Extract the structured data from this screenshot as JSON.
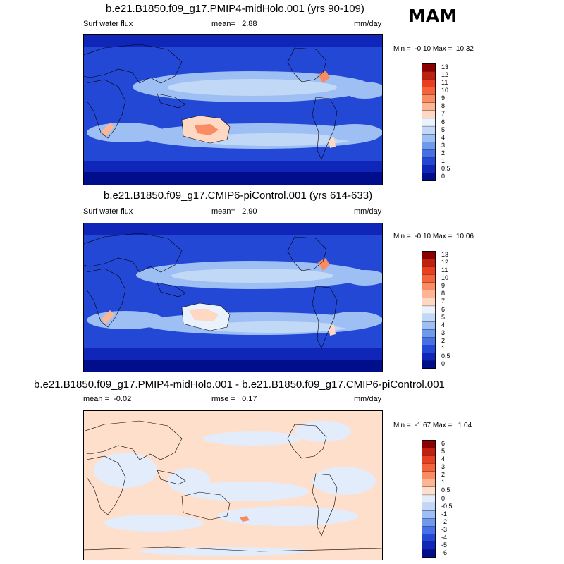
{
  "season": "MAM",
  "units": "mm/day",
  "panels": [
    {
      "title": "b.e21.B1850.f09_g17.PMIP4-midHolo.001 (yrs 90-109)",
      "left_label": "Surf water flux",
      "stat_text": "mean=   2.88",
      "units": "mm/day",
      "minmax": "Min =  -0.10 Max =  10.32"
    },
    {
      "title": "b.e21.B1850.f09_g17.CMIP6-piControl.001 (yrs 614-633)",
      "left_label": "Surf water flux",
      "stat_text": "mean=   2.90",
      "units": "mm/day",
      "minmax": "Min =  -0.10 Max =  10.06"
    },
    {
      "title": "b.e21.B1850.f09_g17.PMIP4-midHolo.001 - b.e21.B1850.f09_g17.CMIP6-piControl.001",
      "left_label": "mean =  -0.02",
      "stat_text": "rmse =   0.17",
      "units": "mm/day",
      "minmax": "Min =  -1.67 Max =   1.04"
    }
  ],
  "chart_data": [
    {
      "type": "heatmap",
      "title": "b.e21.B1850.f09_g17.PMIP4-midHolo.001 (yrs 90-109)",
      "variable": "Surf water flux",
      "units": "mm/day",
      "mean": 2.88,
      "min": -0.1,
      "max": 10.32,
      "colorbar_levels": [
        "13",
        "12",
        "11",
        "10",
        "9",
        "8",
        "7",
        "6",
        "5",
        "4",
        "3",
        "2",
        "1",
        "0.5",
        "0"
      ],
      "colorbar_colors": [
        "#8b0000",
        "#c0200e",
        "#e8401f",
        "#f4633a",
        "#fa8c64",
        "#fdb596",
        "#fed8c2",
        "#eaf2fd",
        "#c2d8f7",
        "#9ebff3",
        "#6e99ec",
        "#4670e3",
        "#2448d6",
        "#0f26b8",
        "#000e8c"
      ]
    },
    {
      "type": "heatmap",
      "title": "b.e21.B1850.f09_g17.CMIP6-piControl.001 (yrs 614-633)",
      "variable": "Surf water flux",
      "units": "mm/day",
      "mean": 2.9,
      "min": -0.1,
      "max": 10.06,
      "colorbar_levels": [
        "13",
        "12",
        "11",
        "10",
        "9",
        "8",
        "7",
        "6",
        "5",
        "4",
        "3",
        "2",
        "1",
        "0.5",
        "0"
      ],
      "colorbar_colors": [
        "#8b0000",
        "#c0200e",
        "#e8401f",
        "#f4633a",
        "#fa8c64",
        "#fdb596",
        "#fed8c2",
        "#eaf2fd",
        "#c2d8f7",
        "#9ebff3",
        "#6e99ec",
        "#4670e3",
        "#2448d6",
        "#0f26b8",
        "#000e8c"
      ]
    },
    {
      "type": "heatmap",
      "title": "b.e21.B1850.f09_g17.PMIP4-midHolo.001 - b.e21.B1850.f09_g17.CMIP6-piControl.001",
      "units": "mm/day",
      "mean": -0.02,
      "rmse": 0.17,
      "min": -1.67,
      "max": 1.04,
      "colorbar_levels": [
        "6",
        "5",
        "4",
        "3",
        "2",
        "1",
        "0.5",
        "0",
        "-0.5",
        "-1",
        "-2",
        "-3",
        "-4",
        "-5",
        "-6"
      ],
      "colorbar_colors": [
        "#8b0000",
        "#c0200e",
        "#e8401f",
        "#f4633a",
        "#fa8c64",
        "#fdb596",
        "#fedfcc",
        "#e3ecfb",
        "#c2d6f5",
        "#9ebff3",
        "#6e99ec",
        "#4670e3",
        "#2448d6",
        "#0f26b8",
        "#000e8c"
      ]
    }
  ]
}
